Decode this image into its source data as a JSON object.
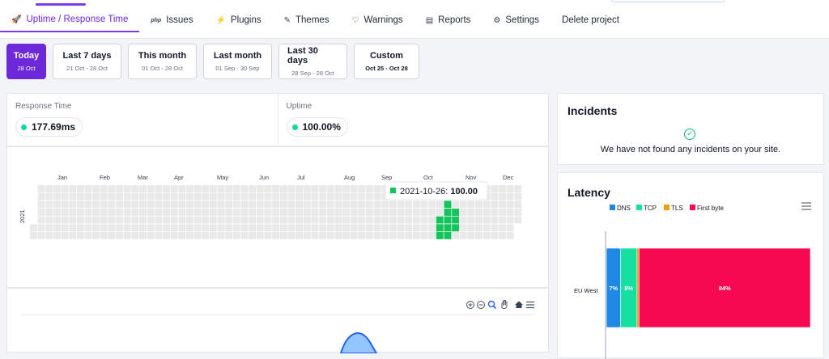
{
  "tabs": [
    {
      "label": "Uptime / Response Time",
      "icon": "rocket-icon",
      "glyph": "🚀"
    },
    {
      "label": "Issues",
      "icon": "php-icon",
      "glyph": "php"
    },
    {
      "label": "Plugins",
      "icon": "plug-icon",
      "glyph": "⚡"
    },
    {
      "label": "Themes",
      "icon": "brush-icon",
      "glyph": "✎"
    },
    {
      "label": "Warnings",
      "icon": "shield-icon",
      "glyph": "♡"
    },
    {
      "label": "Reports",
      "icon": "document-icon",
      "glyph": "▤"
    },
    {
      "label": "Settings",
      "icon": "sliders-icon",
      "glyph": "⚙"
    },
    {
      "label": "Delete project",
      "icon": "",
      "glyph": ""
    }
  ],
  "ranges": [
    {
      "label": "Today",
      "sub": "28 Oct"
    },
    {
      "label": "Last 7 days",
      "sub": "21 Oct - 28 Oct"
    },
    {
      "label": "This month",
      "sub": "01 Oct - 28 Oct"
    },
    {
      "label": "Last month",
      "sub": "01 Sep - 30 Sep"
    },
    {
      "label": "Last 30 days",
      "sub": "28 Sep - 28 Oct"
    },
    {
      "label": "Custom",
      "sub": "Oct 25 - Oct 28"
    }
  ],
  "stats": {
    "response_label": "Response Time",
    "response_value": "177.69ms",
    "uptime_label": "Uptime",
    "uptime_value": "100.00%"
  },
  "heatmap": {
    "year": "2021",
    "months": [
      "Jan",
      "Feb",
      "Mar",
      "Apr",
      "May",
      "Jun",
      "Jul",
      "Aug",
      "Sep",
      "Oct",
      "Nov",
      "Dec"
    ],
    "tooltip_date": "2021-10-26:",
    "tooltip_value": "100.00"
  },
  "toolbar_icons": [
    "zoom-in-icon",
    "zoom-out-icon",
    "magnifier-icon",
    "pan-hand-icon",
    "home-icon",
    "menu-icon"
  ],
  "incidents": {
    "title": "Incidents",
    "message": "We have not found any incidents on your site."
  },
  "latency": {
    "title": "Latency",
    "menu_icon": "menu-icon"
  },
  "chart_data": {
    "type": "bar",
    "title": "Latency",
    "orientation": "horizontal",
    "stacked": true,
    "percent": true,
    "categories": [
      "EU West"
    ],
    "series": [
      {
        "name": "DNS",
        "color": "#1e88e5",
        "values": [
          7
        ],
        "label": "7%"
      },
      {
        "name": "TCP",
        "color": "#16e0a0",
        "values": [
          8
        ],
        "label": "8%"
      },
      {
        "name": "TLS",
        "color": "#f59e0b",
        "values": [
          1
        ],
        "label": ""
      },
      {
        "name": "First byte",
        "color": "#f50a52",
        "values": [
          84
        ],
        "label": "84%"
      }
    ],
    "legend": "top-center"
  }
}
